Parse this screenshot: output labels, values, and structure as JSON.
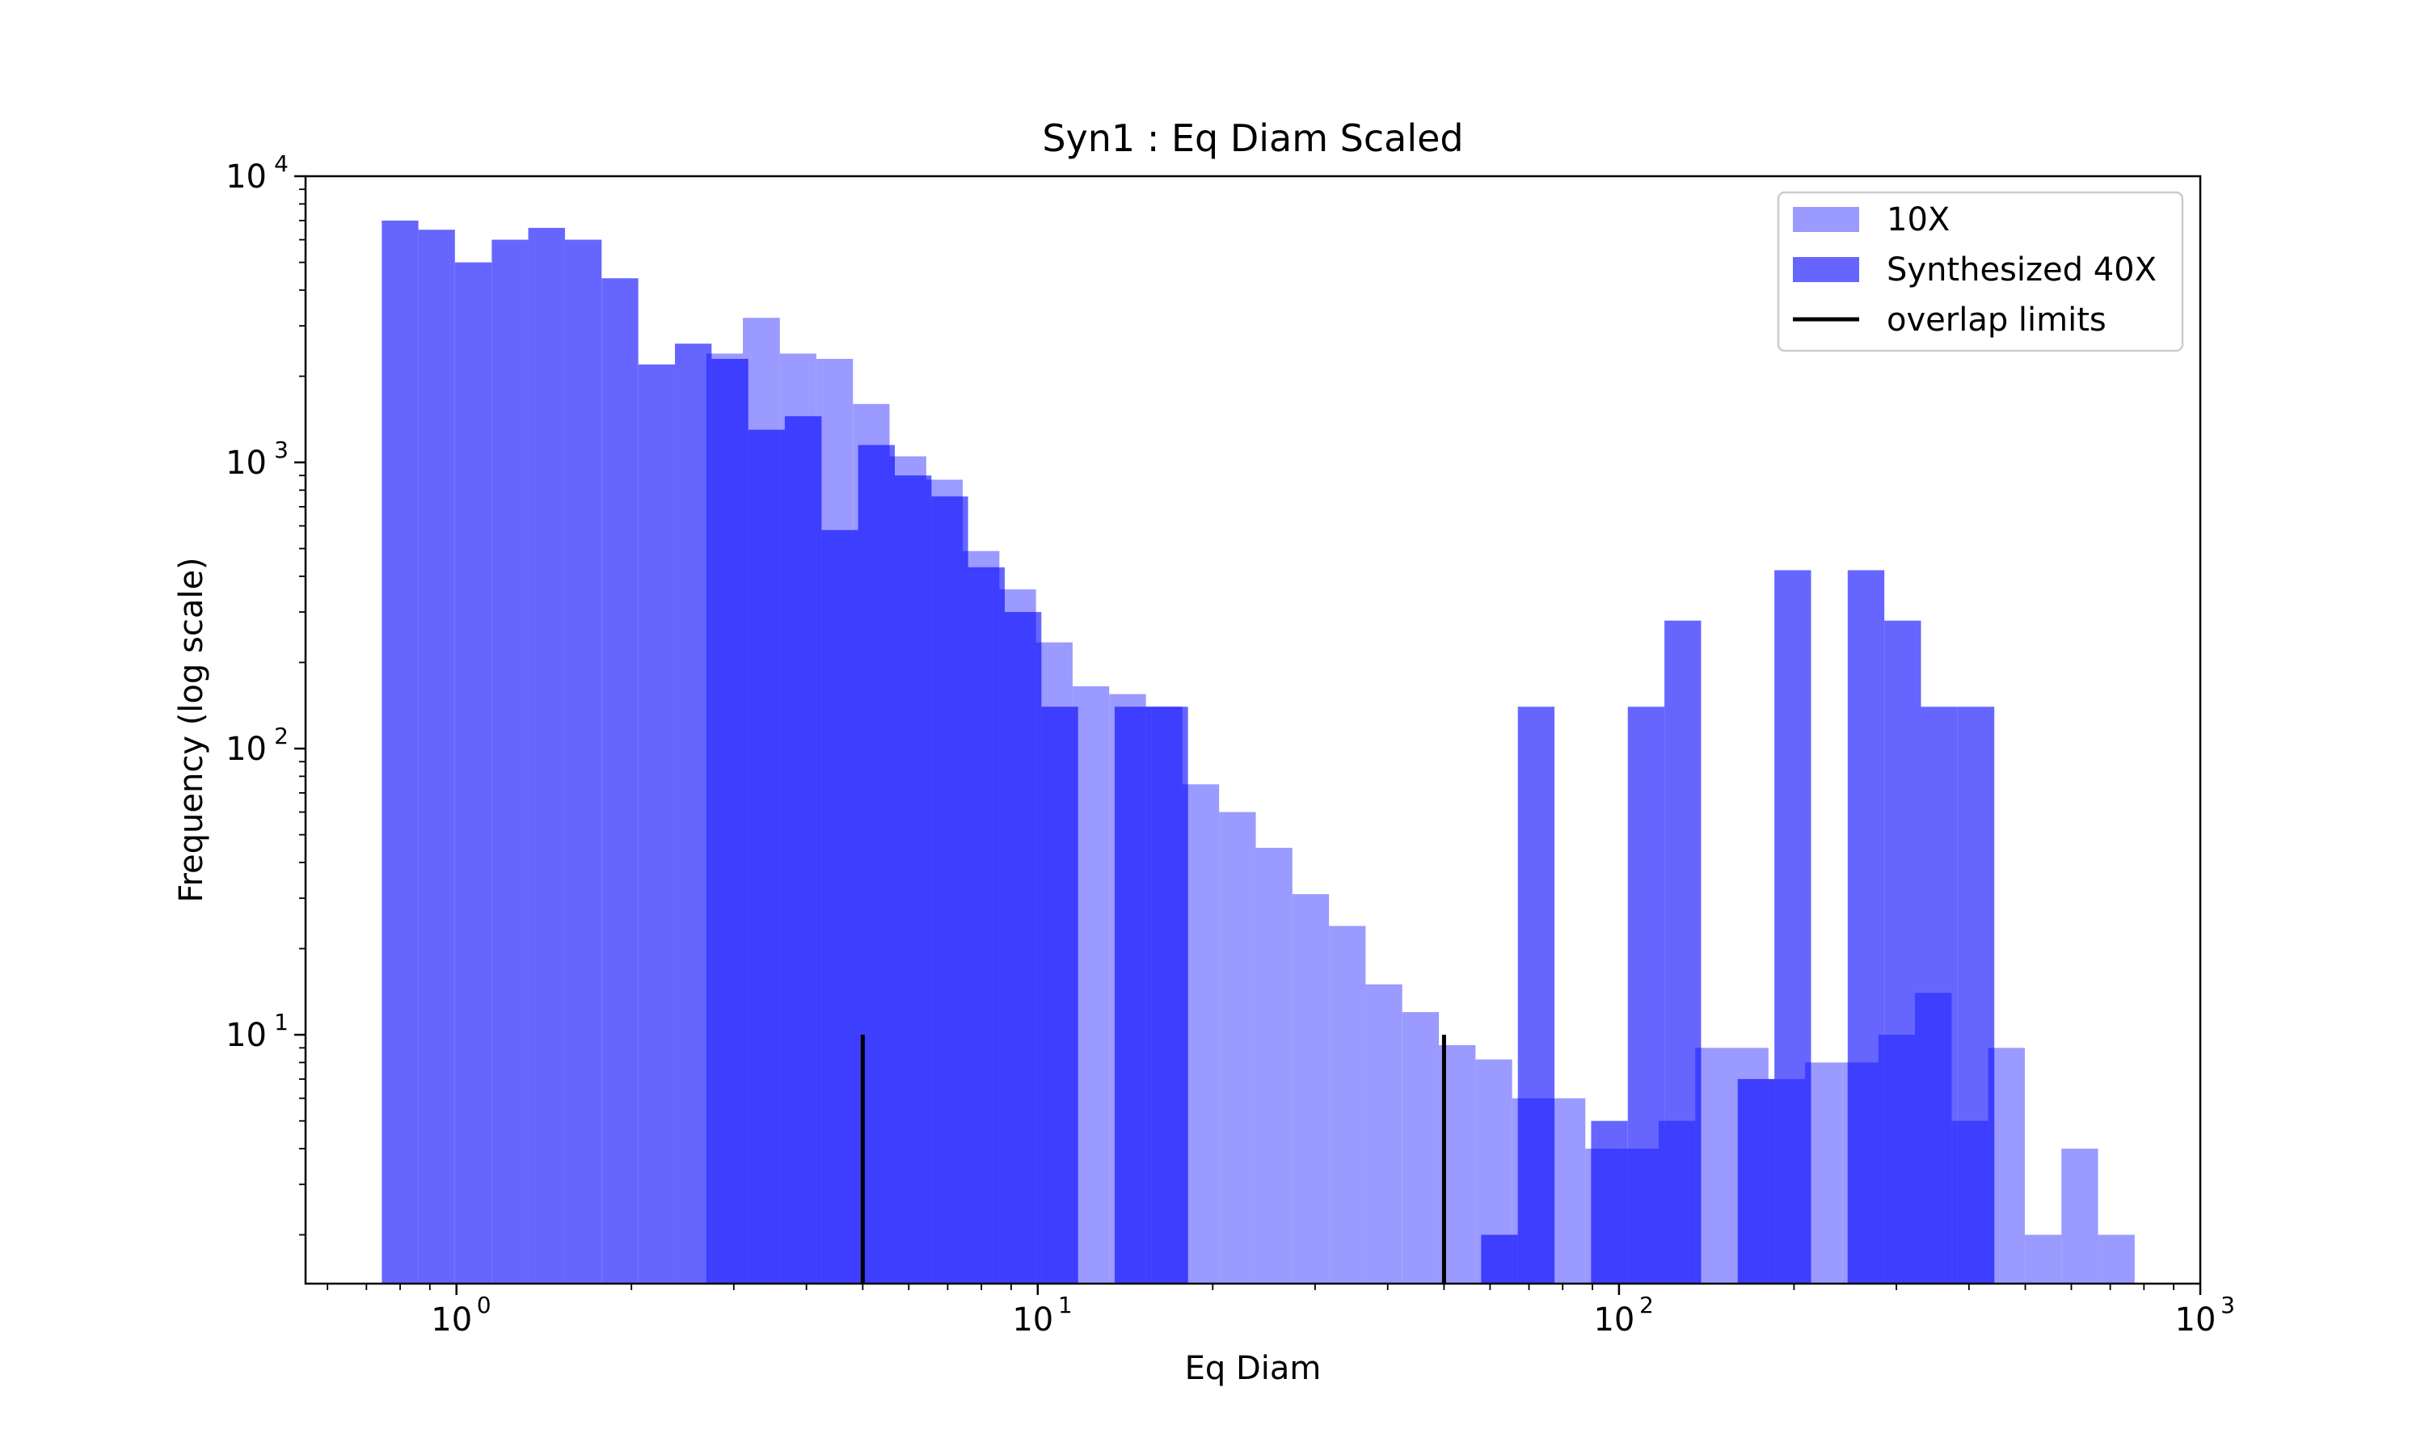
{
  "chart_data": {
    "type": "bar",
    "title": "Syn1 : Eq Diam Scaled",
    "xlabel": "Eq Diam",
    "ylabel": "Frequency (log scale)",
    "x_scale": "log",
    "y_scale": "log",
    "xlim": [
      0.55,
      1000
    ],
    "ylim": [
      1.35,
      10000
    ],
    "x_ticks": [
      {
        "value": 1,
        "base": "10",
        "exp": "0"
      },
      {
        "value": 10,
        "base": "10",
        "exp": "1"
      },
      {
        "value": 100,
        "base": "10",
        "exp": "2"
      },
      {
        "value": 1000,
        "base": "10",
        "exp": "3"
      }
    ],
    "y_ticks": [
      {
        "value": 10,
        "base": "10",
        "exp": "1"
      },
      {
        "value": 100,
        "base": "10",
        "exp": "2"
      },
      {
        "value": 1000,
        "base": "10",
        "exp": "3"
      },
      {
        "value": 10000,
        "base": "10",
        "exp": "4"
      }
    ],
    "colors": {
      "series_10x": "#9a9aff",
      "series_40x": "#6666ff",
      "overlap_fill": "#3e3eff",
      "limits": "#000000"
    },
    "series": [
      {
        "name": "10X",
        "color": "#9a9aff",
        "bin_edges": [
          2.69,
          3.11,
          3.6,
          4.16,
          4.81,
          5.56,
          6.43,
          7.43,
          8.59,
          9.93,
          11.48,
          13.27,
          15.35,
          17.74,
          20.51,
          23.72,
          27.42,
          31.7,
          36.65,
          42.37,
          48.99,
          56.64,
          65.48,
          75.7,
          87.52,
          101.19,
          116.98,
          135.25,
          156.36,
          180.77,
          208.99,
          241.62,
          279.34,
          322.95,
          373.37,
          431.66,
          499.05,
          576.96,
          667.04,
          771.17
        ],
        "values": [
          2400,
          3200,
          2400,
          2300,
          1600,
          1050,
          870,
          490,
          360,
          235,
          165,
          155,
          140,
          75,
          60,
          45,
          31,
          24,
          15,
          12,
          9.2,
          8.2,
          6.0,
          6.0,
          4.0,
          4.0,
          5.0,
          9.0,
          9.0,
          7.0,
          8.0,
          8.0,
          10.0,
          14.0,
          5.0,
          9.0,
          2.0,
          4.0,
          2.0
        ]
      },
      {
        "name": "Synthesized 40X",
        "color": "#6666ff",
        "bin_edges": [
          0.744,
          0.86,
          0.994,
          1.15,
          1.329,
          1.537,
          1.777,
          2.055,
          2.376,
          2.747,
          3.176,
          3.672,
          4.246,
          4.909,
          5.676,
          6.563,
          7.588,
          8.774,
          10.145,
          11.731,
          13.564,
          15.683,
          18.134,
          20.967,
          24.243,
          28.031,
          32.411,
          37.475,
          43.331,
          50.101,
          57.929,
          66.981,
          77.446,
          89.547,
          103.54,
          119.717,
          138.423,
          160.052,
          185.06,
          213.976,
          247.41,
          286.068,
          330.766,
          382.448,
          442.205
        ],
        "values": [
          7000,
          6500,
          5000,
          6000,
          6600,
          6000,
          4400,
          2200,
          2600,
          2300,
          1300,
          1450,
          580,
          1150,
          900,
          760,
          430,
          300,
          140,
          0,
          140,
          140,
          0,
          0,
          0,
          0,
          0,
          0,
          0,
          0,
          2,
          140,
          0,
          5,
          140,
          280,
          0,
          7,
          420,
          0,
          420,
          280,
          140,
          140
        ]
      }
    ],
    "overlap_limits": {
      "name": "overlap limits",
      "x": [
        5,
        50
      ],
      "y_top": 10
    }
  },
  "legend": {
    "position": "top-right",
    "items": [
      {
        "label": "10X",
        "kind": "patch",
        "color": "#9a9aff"
      },
      {
        "label": "Synthesized 40X",
        "kind": "patch",
        "color": "#6666ff"
      },
      {
        "label": "overlap limits",
        "kind": "line",
        "color": "#000000"
      }
    ]
  }
}
